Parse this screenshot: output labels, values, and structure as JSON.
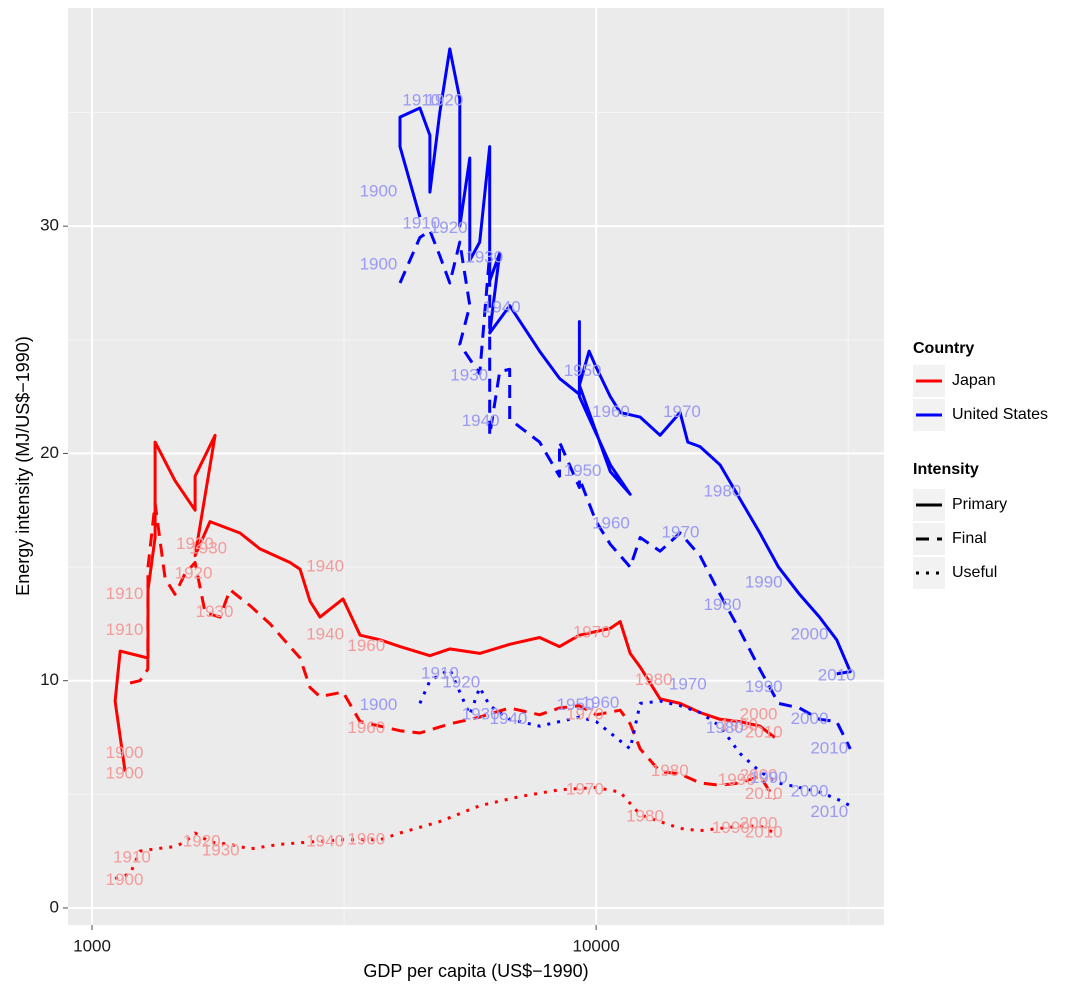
{
  "chart_data": {
    "type": "line",
    "x_label": "GDP per capita (US$−1990)",
    "y_label": "Energy intensity (MJ/US$−1990)",
    "xlog": true,
    "xlim": [
      896,
      37240
    ],
    "ylim": [
      -0.75,
      39.6
    ],
    "xticks": [
      1000,
      10000
    ],
    "yticks": [
      0,
      10,
      20,
      30
    ],
    "x_minor_grid": [
      3162,
      31623
    ],
    "y_minor_grid": [
      5,
      15,
      25,
      35
    ],
    "grid": true,
    "legend": {
      "country": {
        "title": "Country",
        "items": [
          {
            "name": "Japan",
            "color": "#ff0000",
            "label_color": "#f39a9a"
          },
          {
            "name": "United States",
            "color": "#0000ff",
            "label_color": "#9a9af3"
          }
        ]
      },
      "intensity": {
        "title": "Intensity",
        "items": [
          {
            "name": "Primary",
            "dash": "none"
          },
          {
            "name": "Final",
            "dash": "13,8"
          },
          {
            "name": "Useful",
            "dash": "3,7"
          }
        ]
      }
    },
    "series": [
      {
        "country": "Japan",
        "intensity": "Primary",
        "x": [
          1163,
          1111,
          1137,
          1291,
          1291,
          1334,
          1334,
          1461,
          1601,
          1601,
          1754,
          1601,
          1714,
          1966,
          2154,
          2470,
          2586,
          2706,
          2833,
          3146,
          3402,
          3727,
          4082,
          4679,
          5125,
          5876,
          6737,
          7723,
          8459,
          9265,
          10667,
          11163,
          11683,
          12228,
          13395,
          14672,
          16072,
          17603,
          19283,
          21122,
          22605
        ],
        "values": [
          6.0,
          9.1,
          11.3,
          11.0,
          14.0,
          16.3,
          20.5,
          18.8,
          17.5,
          19.0,
          20.8,
          15.5,
          17.0,
          16.5,
          15.8,
          15.2,
          14.9,
          13.5,
          12.8,
          13.6,
          12.0,
          11.8,
          11.5,
          11.1,
          11.4,
          11.2,
          11.6,
          11.9,
          11.5,
          12.0,
          12.3,
          12.6,
          11.2,
          10.6,
          9.2,
          9.0,
          8.6,
          8.3,
          8.2,
          8.0,
          7.5
        ],
        "labels": [
          {
            "text": "1900",
            "x": 1160,
            "y": 6.8
          },
          {
            "text": "1910",
            "x": 1160,
            "y": 12.2
          },
          {
            "text": "1920",
            "x": 1600,
            "y": 16.0
          },
          {
            "text": "1930",
            "x": 1700,
            "y": 15.8
          },
          {
            "text": "1940",
            "x": 2900,
            "y": 15.0
          },
          {
            "text": "1960",
            "x": 3500,
            "y": 11.5
          },
          {
            "text": "1970",
            "x": 9800,
            "y": 12.1
          },
          {
            "text": "1980",
            "x": 13000,
            "y": 10.0
          },
          {
            "text": "1990",
            "x": 19200,
            "y": 8.0
          },
          {
            "text": "2000",
            "x": 21000,
            "y": 8.5
          },
          {
            "text": "2010",
            "x": 21500,
            "y": 7.7
          }
        ]
      },
      {
        "country": "Japan",
        "intensity": "Final",
        "x": [
          1190,
          1245,
          1290,
          1291,
          1334,
          1396,
          1461,
          1528,
          1601,
          1676,
          1794,
          1878,
          2058,
          2255,
          2470,
          2586,
          2706,
          2833,
          3146,
          3402,
          3727,
          4082,
          4471,
          5125,
          5876,
          6737,
          7723,
          8459,
          9265,
          10000,
          11163,
          11683,
          12228,
          13395,
          14672,
          16072,
          17603,
          19283,
          21122,
          22605
        ],
        "values": [
          9.9,
          10.0,
          10.5,
          15.0,
          17.8,
          14.5,
          13.8,
          14.7,
          15.2,
          13.0,
          12.8,
          14.0,
          13.3,
          12.5,
          11.5,
          11.0,
          9.7,
          9.3,
          9.5,
          8.2,
          8.0,
          7.8,
          7.7,
          8.1,
          8.4,
          8.8,
          8.5,
          8.8,
          8.9,
          8.5,
          8.7,
          8.1,
          7.0,
          6.0,
          5.9,
          5.5,
          5.4,
          5.5,
          5.8,
          4.8
        ],
        "labels": [
          {
            "text": "1900",
            "x": 1160,
            "y": 5.9
          },
          {
            "text": "1910",
            "x": 1160,
            "y": 13.8
          },
          {
            "text": "1920",
            "x": 1590,
            "y": 14.7
          },
          {
            "text": "1930",
            "x": 1750,
            "y": 13.0
          },
          {
            "text": "1940",
            "x": 2900,
            "y": 12.0
          },
          {
            "text": "1960",
            "x": 3500,
            "y": 7.9
          },
          {
            "text": "1970",
            "x": 9500,
            "y": 8.5
          },
          {
            "text": "1980",
            "x": 14000,
            "y": 6.0
          },
          {
            "text": "1990",
            "x": 19000,
            "y": 5.6
          },
          {
            "text": "2000",
            "x": 21000,
            "y": 5.8
          },
          {
            "text": "2010",
            "x": 21500,
            "y": 5.0
          }
        ]
      },
      {
        "country": "Japan",
        "intensity": "Useful",
        "x": [
          1111,
          1190,
          1245,
          1334,
          1461,
          1528,
          1601,
          1714,
          1878,
          2058,
          2360,
          2706,
          3146,
          3727,
          4082,
          4897,
          5876,
          7051,
          8459,
          10000,
          11163,
          12228,
          13395,
          14672,
          16072,
          17603,
          19283,
          21122,
          22605
        ],
        "values": [
          1.3,
          1.5,
          2.5,
          2.6,
          2.7,
          2.9,
          3.3,
          2.9,
          2.8,
          2.6,
          2.8,
          2.9,
          3.0,
          3.0,
          3.3,
          3.8,
          4.5,
          4.9,
          5.2,
          5.3,
          5.1,
          4.1,
          3.8,
          3.5,
          3.4,
          3.5,
          3.6,
          3.6,
          3.3
        ],
        "labels": [
          {
            "text": "1900",
            "x": 1160,
            "y": 1.2
          },
          {
            "text": "1910",
            "x": 1200,
            "y": 2.2
          },
          {
            "text": "1920",
            "x": 1650,
            "y": 2.9
          },
          {
            "text": "1930",
            "x": 1800,
            "y": 2.5
          },
          {
            "text": "1940",
            "x": 2900,
            "y": 2.9
          },
          {
            "text": "1960",
            "x": 3500,
            "y": 3.0
          },
          {
            "text": "1970",
            "x": 9500,
            "y": 5.2
          },
          {
            "text": "1980",
            "x": 12500,
            "y": 4.0
          },
          {
            "text": "1990",
            "x": 18500,
            "y": 3.5
          },
          {
            "text": "2000",
            "x": 21000,
            "y": 3.7
          },
          {
            "text": "2010",
            "x": 21500,
            "y": 3.3
          }
        ]
      },
      {
        "country": "United States",
        "intensity": "Primary",
        "x": [
          4471,
          4082,
          4082,
          4471,
          4679,
          4679,
          4897,
          5125,
          5364,
          5364,
          5614,
          5614,
          5876,
          6150,
          6150,
          6437,
          6150,
          6737,
          7723,
          8459,
          9265,
          9265,
          9265,
          10667,
          11683,
          10667,
          9265,
          9683,
          10000,
          10667,
          11163,
          12228,
          13395,
          14672,
          15200,
          16072,
          17603,
          19283,
          21122,
          23000,
          25320,
          27740,
          30000,
          31930,
          30000
        ],
        "values": [
          30.4,
          33.5,
          34.8,
          35.2,
          34.0,
          31.5,
          35.0,
          37.8,
          35.6,
          30.0,
          33.0,
          28.5,
          29.3,
          33.5,
          27.6,
          28.8,
          25.3,
          26.5,
          24.5,
          23.3,
          22.6,
          25.8,
          22.5,
          19.5,
          18.2,
          19.2,
          23.0,
          24.5,
          23.8,
          22.5,
          21.8,
          21.6,
          20.8,
          21.8,
          20.5,
          20.3,
          19.5,
          18.0,
          16.5,
          15.0,
          13.8,
          12.8,
          11.8,
          10.4,
          10.3
        ],
        "labels": [
          {
            "text": "1900",
            "x": 3700,
            "y": 31.5
          },
          {
            "text": "1910",
            "x": 4500,
            "y": 35.5
          },
          {
            "text": "1920",
            "x": 5000,
            "y": 35.5
          },
          {
            "text": "1930",
            "x": 6000,
            "y": 28.6
          },
          {
            "text": "1940",
            "x": 6500,
            "y": 26.4
          },
          {
            "text": "1950",
            "x": 9400,
            "y": 23.6
          },
          {
            "text": "1960",
            "x": 10700,
            "y": 21.8
          },
          {
            "text": "1970",
            "x": 14800,
            "y": 21.8
          },
          {
            "text": "1980",
            "x": 17800,
            "y": 18.3
          },
          {
            "text": "1990",
            "x": 21500,
            "y": 14.3
          },
          {
            "text": "2000",
            "x": 26500,
            "y": 12.0
          },
          {
            "text": "2010",
            "x": 30000,
            "y": 10.2
          }
        ]
      },
      {
        "country": "United States",
        "intensity": "Final",
        "x": [
          4082,
          4471,
          4679,
          4897,
          5125,
          5364,
          5614,
          5364,
          5876,
          6150,
          6150,
          6437,
          6737,
          6737,
          7723,
          8459,
          8459,
          9265,
          9265,
          10000,
          10667,
          11683,
          12228,
          13395,
          14672,
          16072,
          17603,
          19283,
          21122,
          23000,
          25320,
          27740,
          30000,
          31930
        ],
        "values": [
          27.5,
          29.5,
          29.8,
          28.7,
          27.5,
          29.3,
          26.5,
          24.8,
          23.5,
          28.8,
          20.8,
          23.6,
          23.7,
          21.5,
          20.5,
          19.0,
          20.5,
          18.5,
          18.9,
          17.0,
          16.0,
          15.0,
          16.3,
          15.7,
          16.5,
          15.5,
          13.8,
          12.2,
          10.5,
          9.0,
          8.8,
          8.3,
          8.2,
          7.0
        ],
        "labels": [
          {
            "text": "1900",
            "x": 3700,
            "y": 28.3
          },
          {
            "text": "1910",
            "x": 4500,
            "y": 30.1
          },
          {
            "text": "1920",
            "x": 5100,
            "y": 29.9
          },
          {
            "text": "1930",
            "x": 5600,
            "y": 23.4
          },
          {
            "text": "1940",
            "x": 5900,
            "y": 21.4
          },
          {
            "text": "1950",
            "x": 9400,
            "y": 19.2
          },
          {
            "text": "1960",
            "x": 10700,
            "y": 16.9
          },
          {
            "text": "1970",
            "x": 14700,
            "y": 16.5
          },
          {
            "text": "1980",
            "x": 17800,
            "y": 13.3
          },
          {
            "text": "1990",
            "x": 21500,
            "y": 9.7
          },
          {
            "text": "2000",
            "x": 26500,
            "y": 8.3
          },
          {
            "text": "2010",
            "x": 29000,
            "y": 7.0
          }
        ]
      },
      {
        "country": "United States",
        "intensity": "Useful",
        "x": [
          4471,
          4679,
          5125,
          5364,
          5614,
          5876,
          6150,
          6737,
          7723,
          9265,
          10000,
          11683,
          12228,
          13395,
          14672,
          16072,
          17603,
          19283,
          21122,
          23000,
          25320,
          27740,
          30000,
          31930
        ],
        "values": [
          9.0,
          10.0,
          10.5,
          9.5,
          8.5,
          9.7,
          8.9,
          8.3,
          8.0,
          8.4,
          8.2,
          7.0,
          9.0,
          9.1,
          8.9,
          8.6,
          8.0,
          6.8,
          6.0,
          5.5,
          5.3,
          5.1,
          4.8,
          4.5
        ],
        "labels": [
          {
            "text": "1900",
            "x": 3700,
            "y": 8.9
          },
          {
            "text": "1910",
            "x": 4900,
            "y": 10.3
          },
          {
            "text": "1920",
            "x": 5400,
            "y": 9.9
          },
          {
            "text": "1930",
            "x": 5900,
            "y": 8.5
          },
          {
            "text": "1940",
            "x": 6700,
            "y": 8.3
          },
          {
            "text": "1950",
            "x": 9100,
            "y": 8.9
          },
          {
            "text": "1960",
            "x": 10200,
            "y": 9.0
          },
          {
            "text": "1970",
            "x": 15200,
            "y": 9.8
          },
          {
            "text": "1980",
            "x": 18000,
            "y": 7.9
          },
          {
            "text": "1990",
            "x": 22000,
            "y": 5.7
          },
          {
            "text": "2000",
            "x": 26500,
            "y": 5.1
          },
          {
            "text": "2010",
            "x": 29000,
            "y": 4.2
          }
        ]
      }
    ]
  }
}
